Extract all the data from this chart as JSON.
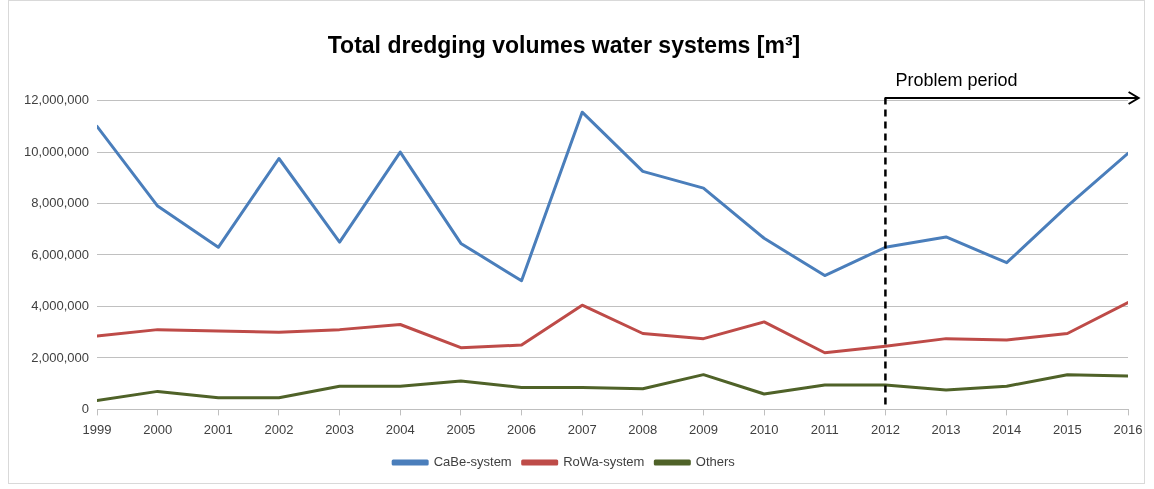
{
  "chart_data": {
    "type": "line",
    "title": "Total dredging volumes water systems [m³]",
    "x": [
      1999,
      2000,
      2001,
      2002,
      2003,
      2004,
      2005,
      2006,
      2007,
      2008,
      2009,
      2010,
      2011,
      2012,
      2013,
      2014,
      2015,
      2016
    ],
    "series": [
      {
        "name": "CaBe-system",
        "color": "#4a7ebb",
        "values": [
          11000000,
          7900000,
          6300000,
          9750000,
          6500000,
          10000000,
          6450000,
          5000000,
          11550000,
          9250000,
          8600000,
          6650000,
          5200000,
          6300000,
          6700000,
          5700000,
          7900000,
          9950000
        ]
      },
      {
        "name": "RoWa-system",
        "color": "#be4b48",
        "values": [
          2850000,
          3100000,
          3050000,
          3000000,
          3100000,
          3300000,
          2400000,
          2500000,
          4050000,
          2950000,
          2750000,
          3400000,
          2200000,
          2450000,
          2750000,
          2700000,
          2950000,
          4150000
        ]
      },
      {
        "name": "Others",
        "color": "#4f6228",
        "values": [
          350000,
          700000,
          450000,
          450000,
          900000,
          900000,
          1100000,
          850000,
          850000,
          800000,
          1350000,
          600000,
          950000,
          950000,
          750000,
          900000,
          1350000,
          1300000
        ]
      }
    ],
    "xlim": [
      1999,
      2016
    ],
    "xticks": [
      1999,
      2000,
      2001,
      2002,
      2003,
      2004,
      2005,
      2006,
      2007,
      2008,
      2009,
      2010,
      2011,
      2012,
      2013,
      2014,
      2015,
      2016
    ],
    "ylim": [
      0,
      12000000
    ],
    "yticks": [
      0,
      {
        "value": 2000000,
        "label": "2,000,000"
      },
      {
        "value": 4000000,
        "label": "4,000,000"
      },
      {
        "value": 6000000,
        "label": "6,000,000"
      },
      {
        "value": 8000000,
        "label": "8,000,000"
      },
      {
        "value": 10000000,
        "label": "10,000,000"
      },
      {
        "value": 12000000,
        "label": "12,000,000"
      }
    ],
    "ref_lines": [
      {
        "axis": "x",
        "value": 2012,
        "label": "Problem period",
        "color": "#000000",
        "line_style": "dashed"
      }
    ],
    "grid": "y",
    "legend": "bottom",
    "marker": "none"
  }
}
